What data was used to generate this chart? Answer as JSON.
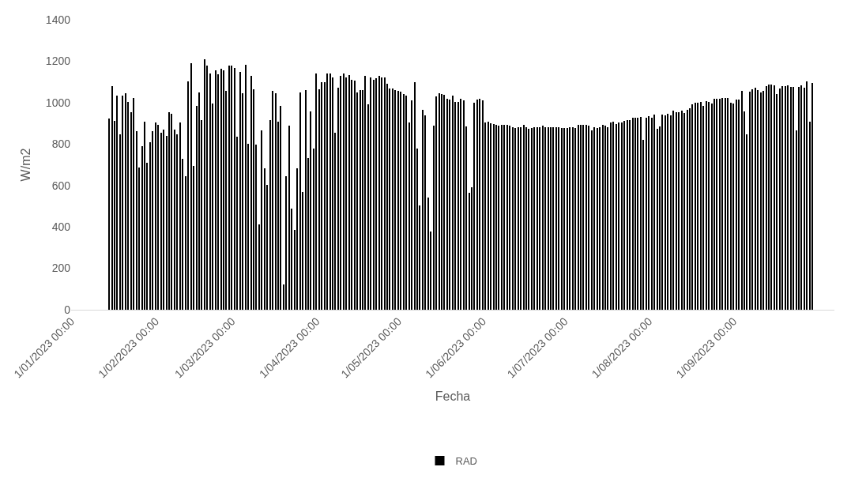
{
  "chart_data": {
    "type": "bar",
    "xlabel": "Fecha",
    "ylabel": "W/m2",
    "x": [
      "2023-01-15",
      "2023-01-16",
      "2023-01-17",
      "2023-01-18",
      "2023-01-19",
      "2023-01-20",
      "2023-01-21",
      "2023-01-22",
      "2023-01-23",
      "2023-01-24",
      "2023-01-25",
      "2023-01-26",
      "2023-01-27",
      "2023-01-28",
      "2023-01-29",
      "2023-01-30",
      "2023-01-31",
      "2023-02-01",
      "2023-02-02",
      "2023-02-03",
      "2023-02-04",
      "2023-02-05",
      "2023-02-06",
      "2023-02-07",
      "2023-02-08",
      "2023-02-09",
      "2023-02-10",
      "2023-02-11",
      "2023-02-12",
      "2023-02-13",
      "2023-02-14",
      "2023-02-15",
      "2023-02-16",
      "2023-02-17",
      "2023-02-18",
      "2023-02-19",
      "2023-02-20",
      "2023-02-21",
      "2023-02-22",
      "2023-02-23",
      "2023-02-24",
      "2023-02-25",
      "2023-02-26",
      "2023-02-27",
      "2023-02-28",
      "2023-03-01",
      "2023-03-02",
      "2023-03-03",
      "2023-03-04",
      "2023-03-05",
      "2023-03-06",
      "2023-03-07",
      "2023-03-08",
      "2023-03-09",
      "2023-03-10",
      "2023-03-11",
      "2023-03-12",
      "2023-03-13",
      "2023-03-14",
      "2023-03-15",
      "2023-03-16",
      "2023-03-17",
      "2023-03-18",
      "2023-03-19",
      "2023-03-20",
      "2023-03-21",
      "2023-03-22",
      "2023-03-23",
      "2023-03-24",
      "2023-03-25",
      "2023-03-26",
      "2023-03-27",
      "2023-03-28",
      "2023-03-29",
      "2023-03-30",
      "2023-03-31",
      "2023-04-01",
      "2023-04-02",
      "2023-04-03",
      "2023-04-04",
      "2023-04-05",
      "2023-04-06",
      "2023-04-07",
      "2023-04-08",
      "2023-04-09",
      "2023-04-10",
      "2023-04-11",
      "2023-04-12",
      "2023-04-13",
      "2023-04-14",
      "2023-04-15",
      "2023-04-16",
      "2023-04-17",
      "2023-04-18",
      "2023-04-19",
      "2023-04-20",
      "2023-04-21",
      "2023-04-22",
      "2023-04-23",
      "2023-04-24",
      "2023-04-25",
      "2023-04-26",
      "2023-04-27",
      "2023-04-28",
      "2023-04-29",
      "2023-04-30",
      "2023-05-01",
      "2023-05-02",
      "2023-05-03",
      "2023-05-04",
      "2023-05-05",
      "2023-05-06",
      "2023-05-07",
      "2023-05-08",
      "2023-05-09",
      "2023-05-10",
      "2023-05-11",
      "2023-05-12",
      "2023-05-13",
      "2023-05-14",
      "2023-05-15",
      "2023-05-16",
      "2023-05-17",
      "2023-05-18",
      "2023-05-19",
      "2023-05-20",
      "2023-05-21",
      "2023-05-22",
      "2023-05-23",
      "2023-05-24",
      "2023-05-25",
      "2023-05-26",
      "2023-05-27",
      "2023-05-28",
      "2023-05-29",
      "2023-05-30",
      "2023-05-31",
      "2023-06-01",
      "2023-06-02",
      "2023-06-03",
      "2023-06-04",
      "2023-06-05",
      "2023-06-06",
      "2023-06-07",
      "2023-06-08",
      "2023-06-09",
      "2023-06-10",
      "2023-06-11",
      "2023-06-12",
      "2023-06-13",
      "2023-06-14",
      "2023-06-15",
      "2023-06-16",
      "2023-06-17",
      "2023-06-18",
      "2023-06-19",
      "2023-06-20",
      "2023-06-21",
      "2023-06-22",
      "2023-06-23",
      "2023-06-24",
      "2023-06-25",
      "2023-06-26",
      "2023-06-27",
      "2023-06-28",
      "2023-06-29",
      "2023-06-30",
      "2023-07-01",
      "2023-07-02",
      "2023-07-03",
      "2023-07-04",
      "2023-07-05",
      "2023-07-06",
      "2023-07-07",
      "2023-07-08",
      "2023-07-09",
      "2023-07-10",
      "2023-07-11",
      "2023-07-12",
      "2023-07-13",
      "2023-07-14",
      "2023-07-15",
      "2023-07-16",
      "2023-07-17",
      "2023-07-18",
      "2023-07-19",
      "2023-07-20",
      "2023-07-21",
      "2023-07-22",
      "2023-07-23",
      "2023-07-24",
      "2023-07-25",
      "2023-07-26",
      "2023-07-27",
      "2023-07-28",
      "2023-07-29",
      "2023-07-30",
      "2023-07-31",
      "2023-08-01",
      "2023-08-02",
      "2023-08-03",
      "2023-08-04",
      "2023-08-05",
      "2023-08-06",
      "2023-08-07",
      "2023-08-08",
      "2023-08-09",
      "2023-08-10",
      "2023-08-11",
      "2023-08-12",
      "2023-08-13",
      "2023-08-14",
      "2023-08-15",
      "2023-08-16",
      "2023-08-17",
      "2023-08-18",
      "2023-08-19",
      "2023-08-20",
      "2023-08-21",
      "2023-08-22",
      "2023-08-23",
      "2023-08-24",
      "2023-08-25",
      "2023-08-26",
      "2023-08-27",
      "2023-08-28",
      "2023-08-29",
      "2023-08-30",
      "2023-08-31",
      "2023-09-01",
      "2023-09-02",
      "2023-09-03",
      "2023-09-04",
      "2023-09-05",
      "2023-09-06",
      "2023-09-07",
      "2023-09-08",
      "2023-09-09",
      "2023-09-10",
      "2023-09-11",
      "2023-09-12",
      "2023-09-13",
      "2023-09-14",
      "2023-09-15",
      "2023-09-16",
      "2023-09-17",
      "2023-09-18",
      "2023-09-19",
      "2023-09-20",
      "2023-09-21",
      "2023-09-22",
      "2023-09-23",
      "2023-09-24",
      "2023-09-25",
      "2023-09-26",
      "2023-09-27",
      "2023-09-28",
      "2023-09-29",
      "2023-09-30"
    ],
    "series": [
      {
        "name": "RAD",
        "color": "#000000",
        "values": [
          924,
          1078,
          911,
          1034,
          846,
          1034,
          1045,
          1005,
          953,
          1024,
          862,
          685,
          791,
          908,
          710,
          807,
          862,
          904,
          894,
          856,
          869,
          840,
          953,
          946,
          869,
          846,
          904,
          729,
          645,
          1102,
          1191,
          694,
          985,
          1050,
          917,
          1209,
          1180,
          1139,
          995,
          1157,
          1136,
          1165,
          1155,
          1055,
          1180,
          1180,
          1167,
          836,
          1147,
          1047,
          1183,
          802,
          1129,
          1066,
          797,
          412,
          865,
          684,
          603,
          914,
          1055,
          1044,
          909,
          983,
          122,
          645,
          890,
          488,
          384,
          684,
          1049,
          570,
          1061,
          733,
          956,
          778,
          1141,
          1066,
          1100,
          1100,
          1141,
          1141,
          1120,
          856,
          1071,
          1131,
          1141,
          1123,
          1134,
          1112,
          1105,
          1050,
          1061,
          1061,
          1128,
          992,
          1121,
          1112,
          1118,
          1128,
          1121,
          1121,
          1092,
          1068,
          1068,
          1061,
          1057,
          1053,
          1040,
          1034,
          904,
          1011,
          1099,
          778,
          502,
          966,
          937,
          541,
          379,
          888,
          1031,
          1044,
          1040,
          1037,
          1019,
          1016,
          1034,
          1005,
          1005,
          1019,
          1010,
          886,
          566,
          593,
          1000,
          1015,
          1019,
          1011,
          903,
          908,
          899,
          896,
          894,
          890,
          891,
          891,
          891,
          888,
          883,
          877,
          883,
          883,
          891,
          883,
          872,
          877,
          883,
          883,
          883,
          888,
          883,
          883,
          883,
          883,
          883,
          883,
          877,
          877,
          877,
          881,
          881,
          877,
          891,
          891,
          891,
          891,
          888,
          865,
          883,
          878,
          883,
          894,
          888,
          883,
          904,
          909,
          898,
          904,
          904,
          911,
          917,
          917,
          927,
          927,
          927,
          932,
          820,
          927,
          935,
          927,
          941,
          874,
          886,
          941,
          938,
          945,
          938,
          961,
          953,
          953,
          961,
          949,
          966,
          972,
          993,
          1000,
          1000,
          1005,
          983,
          1008,
          1003,
          997,
          1019,
          1019,
          1019,
          1021,
          1022,
          1021,
          1000,
          997,
          1016,
          1016,
          1055,
          956,
          846,
          1053,
          1066,
          1073,
          1061,
          1049,
          1057,
          1079,
          1086,
          1089,
          1082,
          1042,
          1070,
          1078,
          1078,
          1082,
          1074,
          1076,
          865,
          1074,
          1082,
          1073,
          1102,
          908,
          1094
        ]
      }
    ],
    "xlim": [
      "2023-01-01",
      "2023-10-08"
    ],
    "xticks": [
      {
        "value": "2023-01-01",
        "label": "1/01/2023 00:00"
      },
      {
        "value": "2023-02-01",
        "label": "1/02/2023 00:00"
      },
      {
        "value": "2023-03-01",
        "label": "1/03/2023 00:00"
      },
      {
        "value": "2023-04-01",
        "label": "1/04/2023 00:00"
      },
      {
        "value": "2023-05-01",
        "label": "1/05/2023 00:00"
      },
      {
        "value": "2023-06-01",
        "label": "1/06/2023 00:00"
      },
      {
        "value": "2023-07-01",
        "label": "1/07/2023 00:00"
      },
      {
        "value": "2023-08-01",
        "label": "1/08/2023 00:00"
      },
      {
        "value": "2023-09-01",
        "label": "1/09/2023 00:00"
      }
    ],
    "ylim": [
      0,
      1400
    ],
    "yticks": [
      0,
      200,
      400,
      600,
      800,
      1000,
      1200,
      1400
    ],
    "grid": false,
    "legend": "bottom"
  }
}
